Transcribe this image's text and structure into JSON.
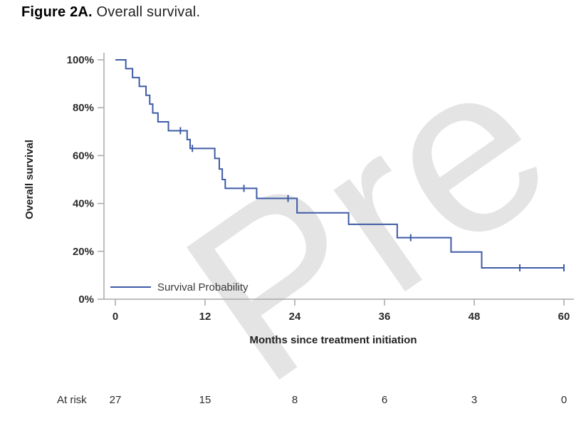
{
  "figure": {
    "title_prefix": "Figure 2A.",
    "title_text": " Overall survival."
  },
  "watermark": {
    "text": "Pre"
  },
  "colors": {
    "curve": "#3e5ba6",
    "axis": "#a8a8a8",
    "tick_text": "#2b2b2b",
    "label_text": "#222222",
    "legend_text": "#3a3a3a",
    "watermark": "#e4e4e4"
  },
  "chart_data": {
    "type": "line",
    "subtype": "kaplan-meier-step",
    "title": "",
    "xlabel": "Months since treatment initiation",
    "ylabel": "Overall survival",
    "xlim": [
      0,
      60
    ],
    "ylim_percent": [
      0,
      100
    ],
    "x_ticks": [
      0,
      12,
      24,
      36,
      48,
      60
    ],
    "y_ticks_percent": [
      0,
      20,
      40,
      60,
      80,
      100
    ],
    "y_tick_suffix": "%",
    "grid": false,
    "legend_position": "inside-bottom-left",
    "series": [
      {
        "name": "Survival Probability",
        "color": "#3e5ba6",
        "step_points_t_percent": [
          [
            0,
            100
          ],
          [
            1.4,
            96.3
          ],
          [
            2.3,
            92.6
          ],
          [
            3.2,
            88.9
          ],
          [
            4.1,
            85.2
          ],
          [
            4.6,
            81.5
          ],
          [
            5.0,
            77.8
          ],
          [
            5.7,
            74.1
          ],
          [
            7.1,
            70.4
          ],
          [
            9.6,
            66.7
          ],
          [
            10.0,
            63.0
          ],
          [
            13.3,
            58.8
          ],
          [
            13.9,
            54.4
          ],
          [
            14.3,
            50.0
          ],
          [
            14.7,
            46.3
          ],
          [
            18.9,
            42.1
          ],
          [
            24.3,
            36.1
          ],
          [
            31.2,
            31.3
          ],
          [
            37.7,
            25.7
          ],
          [
            44.9,
            19.7
          ],
          [
            49.0,
            13.1
          ]
        ],
        "censor_marks_t_percent": [
          [
            8.7,
            70.4
          ],
          [
            10.3,
            63.0
          ],
          [
            17.2,
            46.3
          ],
          [
            23.1,
            42.1
          ],
          [
            39.5,
            25.7
          ],
          [
            54.1,
            13.1
          ],
          [
            60,
            13.1
          ]
        ],
        "end_time": 60
      }
    ],
    "at_risk": {
      "label": "At risk",
      "times": [
        0,
        12,
        24,
        36,
        48,
        60
      ],
      "counts": [
        27,
        15,
        8,
        6,
        3,
        0
      ]
    }
  }
}
